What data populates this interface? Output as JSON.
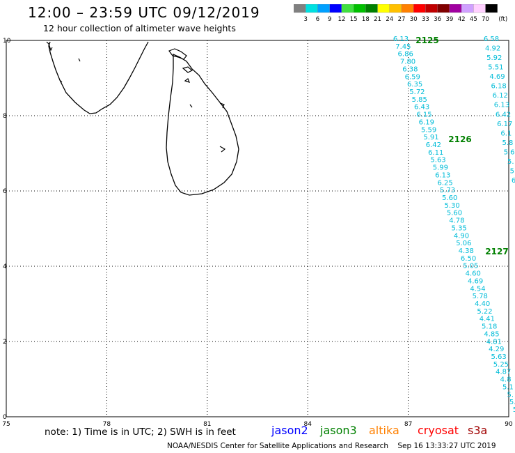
{
  "title": "12:00 – 23:59 UTC 09/12/2019",
  "subtitle": "12 hour collection of altimeter wave heights",
  "legend": {
    "labels": [
      "3",
      "6",
      "9",
      "12",
      "15",
      "18",
      "21",
      "24",
      "27",
      "30",
      "33",
      "36",
      "39",
      "42",
      "45",
      "70"
    ],
    "unit": "(ft)",
    "colors": [
      "#808080",
      "#00e0e0",
      "#00a0ff",
      "#0000ff",
      "#40e040",
      "#00c000",
      "#008000",
      "#ffff00",
      "#ffc000",
      "#ff8000",
      "#ff0000",
      "#c00000",
      "#800000",
      "#a000a0",
      "#d0a0ff",
      "#ffd0ff",
      "#000000"
    ]
  },
  "axes": {
    "x_ticks": [
      "75",
      "78",
      "81",
      "84",
      "87",
      "90"
    ],
    "y_ticks": [
      "0",
      "2",
      "4",
      "6",
      "8",
      "10"
    ],
    "lon_range": [
      75,
      90
    ],
    "lat_range": [
      0,
      10
    ]
  },
  "passes": [
    {
      "label": "2125",
      "color": "#008000",
      "values": [
        "6.13",
        "7.45",
        "6.86",
        "7.80",
        "6.38",
        "6.59",
        "6.35",
        "5.72",
        "5.85",
        "6.43",
        "6.15",
        "6.19",
        "5.59",
        "5.91",
        "6.42",
        "6.11",
        "5.63",
        "5.99",
        "6.13",
        "6.25",
        "5.73",
        "5.60",
        "5.30",
        "5.60",
        "4.78",
        "5.35",
        "4.90",
        "5.06",
        "4.38",
        "6.50",
        "5.05",
        "4.60",
        "4.69",
        "4.54",
        "5.78",
        "4.40",
        "5.22",
        "4.41",
        "5.18",
        "4.85",
        "4.81",
        "4.29",
        "5.63",
        "5.25",
        "4.87",
        "4.8",
        "5.1",
        "5.",
        "5.",
        "5"
      ]
    },
    {
      "label": "2126",
      "color": "#008000"
    },
    {
      "label": "2127",
      "color": "#008000"
    },
    {
      "label": "",
      "color": "#00c8e0",
      "values": [
        "6.58",
        "4.92",
        "5.92",
        "5.51",
        "4.69",
        "6.18",
        "6.12",
        "6.13",
        "6.42",
        "6.17",
        "6.1",
        "5.8",
        "5.6",
        "5.",
        "5",
        "6"
      ]
    }
  ],
  "note": "note: 1) Time is in UTC; 2) SWH is in feet",
  "satellites": [
    {
      "name": "jason2",
      "color": "#0000ff"
    },
    {
      "name": "jason3",
      "color": "#008000"
    },
    {
      "name": "altika",
      "color": "#ff8000"
    },
    {
      "name": "cryosat",
      "color": "#ff0000"
    },
    {
      "name": "s3a",
      "color": "#a00000"
    }
  ],
  "footer": "NOAA/NESDIS Center for Satellite Applications and Research    Sep 16 13:33:27 UTC 2019"
}
